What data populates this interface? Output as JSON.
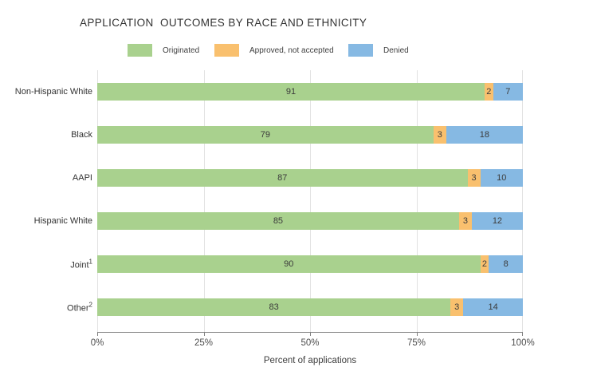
{
  "title": "APPLICATION  OUTCOMES BY RACE AND ETHNICITY",
  "legend": [
    {
      "label": "Originated",
      "color": "#a9d18e"
    },
    {
      "label": "Approved, not accepted",
      "color": "#f9c06e"
    },
    {
      "label": "Denied",
      "color": "#86b9e3"
    }
  ],
  "x_axis": {
    "ticks": [
      "0%",
      "25%",
      "50%",
      "75%",
      "100%"
    ],
    "label": "Percent of applications"
  },
  "chart_data": {
    "type": "bar",
    "orientation": "horizontal",
    "stacked": true,
    "title": "APPLICATION  OUTCOMES BY RACE AND ETHNICITY",
    "xlabel": "Percent of applications",
    "ylabel": "",
    "xlim": [
      0,
      100
    ],
    "x_tick_labels": [
      "0%",
      "25%",
      "50%",
      "75%",
      "100%"
    ],
    "grid": "vertical",
    "legend_position": "top",
    "categories": [
      "Non-Hispanic White",
      "Black",
      "AAPI",
      "Hispanic White",
      "Joint",
      "Other"
    ],
    "category_superscripts": [
      "",
      "",
      "",
      "",
      "1",
      "2"
    ],
    "series": [
      {
        "name": "Originated",
        "color": "#a9d18e",
        "values": [
          91,
          79,
          87,
          85,
          90,
          83
        ]
      },
      {
        "name": "Approved, not accepted",
        "color": "#f9c06e",
        "values": [
          2,
          3,
          3,
          3,
          2,
          3
        ]
      },
      {
        "name": "Denied",
        "color": "#86b9e3",
        "values": [
          7,
          18,
          10,
          12,
          8,
          14
        ]
      }
    ]
  }
}
